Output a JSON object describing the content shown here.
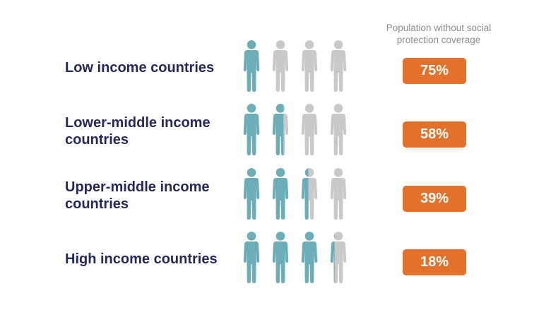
{
  "header": "Population without social protection coverage",
  "colors": {
    "covered": "#6baeb8",
    "uncovered": "#c9c9c9",
    "label": "#24295c",
    "badge": "#e4712a"
  },
  "figure_icon": "person-icon",
  "figures_per_row": 4,
  "chart_data": {
    "type": "pictogram",
    "title": "Population without social protection coverage",
    "categories": [
      "Low income countries",
      "Lower-middle income countries",
      "Upper-middle income countries",
      "High income countries"
    ],
    "values": [
      75,
      58,
      39,
      18
    ],
    "value_labels": [
      "75%",
      "58%",
      "39%",
      "18%"
    ],
    "unit": "%"
  },
  "rows": [
    {
      "label_line1": "Low income countries",
      "label_line2": "",
      "value": "75%"
    },
    {
      "label_line1": "Lower-middle income",
      "label_line2": "countries",
      "value": "58%"
    },
    {
      "label_line1": "Upper-middle income",
      "label_line2": "countries",
      "value": "39%"
    },
    {
      "label_line1": "High income countries",
      "label_line2": "",
      "value": "18%"
    }
  ]
}
